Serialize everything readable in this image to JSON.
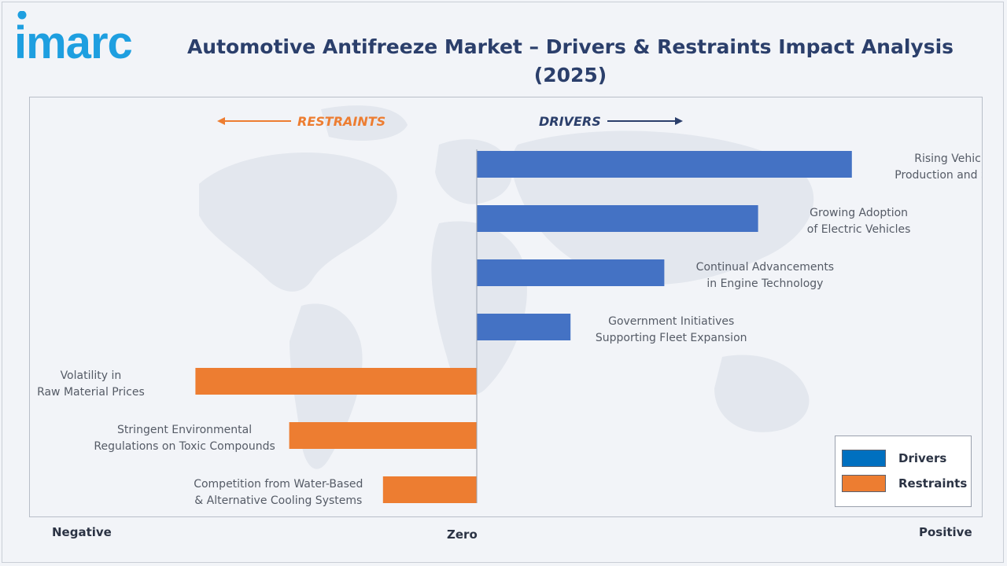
{
  "brand": "imarc",
  "title": "Automotive Antifreeze Market – Drivers & Restraints Impact Analysis (2025)",
  "direction_labels": {
    "restraints": "RESTRAINTS",
    "drivers": "DRIVERS"
  },
  "axis_words": {
    "negative": "Negative",
    "zero": "Zero",
    "positive": "Positive"
  },
  "colors": {
    "drivers": "#4472c4",
    "restraints": "#ed7d31",
    "title": "#2b3f6b",
    "logo": "#1e9fe0"
  },
  "legend": [
    {
      "label": "Drivers",
      "color": "#0070c0"
    },
    {
      "label": "Restraints",
      "color": "#ed7d31"
    }
  ],
  "chart_data": {
    "type": "bar",
    "orientation": "horizontal",
    "title": "Automotive Antifreeze Market – Drivers & Restraints Impact Analysis (2025)",
    "xlim": [
      -1,
      1
    ],
    "grid": false,
    "legend_position": "bottom-right",
    "categories": [
      [
        "Rising Vehicle",
        "Production and Sales"
      ],
      [
        "Growing Adoption",
        "of Electric Vehicles"
      ],
      [
        "Continual Advancements",
        "in Engine Technology"
      ],
      [
        "Government Initiatives",
        "Supporting Fleet Expansion"
      ],
      [
        "Volatility in",
        "Raw Material Prices"
      ],
      [
        "Stringent Environmental",
        "Regulations on Toxic Compounds"
      ],
      [
        "Competition from Water-Based",
        "& Alternative Cooling Systems"
      ]
    ],
    "series": [
      {
        "name": "Drivers",
        "values": [
          0.8,
          0.6,
          0.4,
          0.2,
          null,
          null,
          null
        ]
      },
      {
        "name": "Restraints",
        "values": [
          null,
          null,
          null,
          null,
          -0.6,
          -0.4,
          -0.2
        ]
      }
    ]
  }
}
